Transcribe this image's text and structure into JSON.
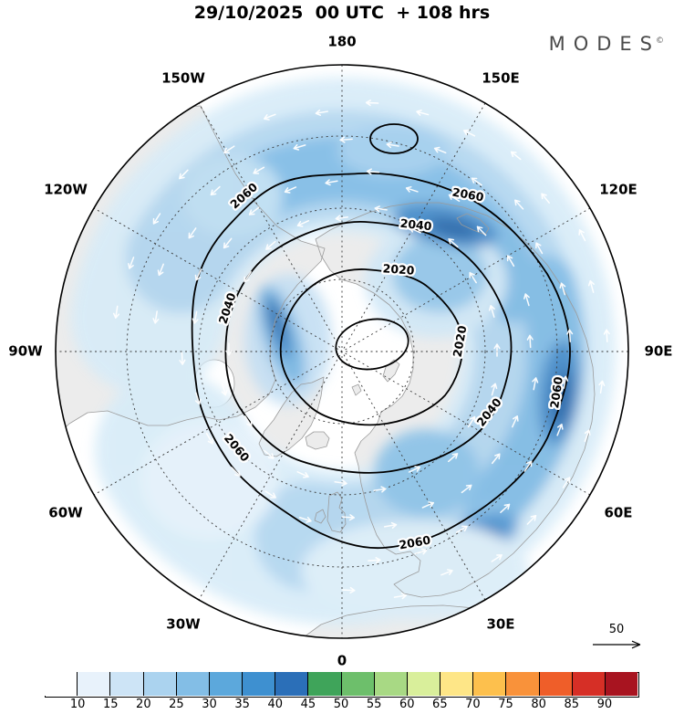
{
  "header": {
    "title": "29/10/2025  00 UTC  + 108 hrs",
    "brand": "MODES",
    "brand_mark": "©"
  },
  "map": {
    "projection_note": "north-polar view",
    "lon_labels": [
      "180",
      "150E",
      "120E",
      "90E",
      "60E",
      "30E",
      "0",
      "30W",
      "60W",
      "90W",
      "120W",
      "150W"
    ],
    "contour_labels": [
      "2060",
      "2060",
      "2040",
      "2020",
      "2020",
      "2040",
      "2060",
      "2040",
      "2060",
      "2060"
    ],
    "contour_levels": [
      2020,
      2040,
      2060
    ],
    "reference_arrow_label": "50"
  },
  "colorbar": {
    "tick_labels": [
      "10",
      "15",
      "20",
      "25",
      "30",
      "35",
      "40",
      "45",
      "50",
      "55",
      "60",
      "65",
      "70",
      "75",
      "80",
      "85",
      "90"
    ],
    "cell_colors": [
      "#ffffff",
      "#e8f2fb",
      "#cde4f6",
      "#abd3ef",
      "#83bee6",
      "#5ca8dc",
      "#3e90d0",
      "#2b6fb8",
      "#3fa45a",
      "#6dbf6b",
      "#a8d984",
      "#d9ef9b",
      "#fee687",
      "#fdc04d",
      "#f9923a",
      "#ef5e29",
      "#d62f26",
      "#a81420"
    ]
  },
  "colors": {
    "land": "#ececec",
    "coastline": "#9b9b9b",
    "contour": "#000000",
    "arrow": "#ffffff"
  }
}
